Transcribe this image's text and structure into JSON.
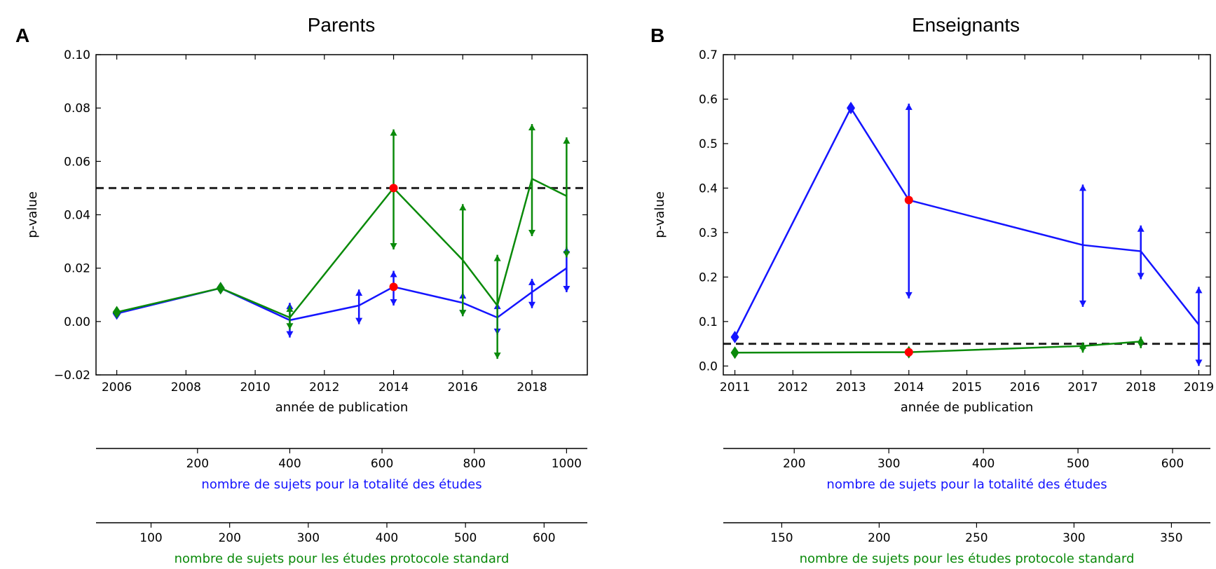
{
  "colors": {
    "all": "#1414ff",
    "standard": "#0a8a0a",
    "highlight": "#ff0000",
    "threshold": "#222222"
  },
  "chart_data": [
    {
      "type": "line",
      "panel_letter": "A",
      "title": "Parents",
      "xlabel": "année de publication",
      "ylabel": "p-value",
      "xlim": [
        2005.4,
        2019.6
      ],
      "ylim": [
        -0.02,
        0.1
      ],
      "xticks": [
        2006,
        2008,
        2010,
        2012,
        2014,
        2016,
        2018
      ],
      "yticks": [
        -0.02,
        0.0,
        0.02,
        0.04,
        0.06,
        0.08,
        0.1
      ],
      "ytick_labels": [
        "−0.02",
        "0.00",
        "0.02",
        "0.04",
        "0.06",
        "0.08",
        "0.10"
      ],
      "threshold": 0.05,
      "series": [
        {
          "key": "all",
          "color": "all",
          "points": [
            {
              "x": 2006,
              "y": 0.003,
              "lo": 0.003,
              "hi": 0.003
            },
            {
              "x": 2009,
              "y": 0.0125,
              "lo": 0.0125,
              "hi": 0.0125
            },
            {
              "x": 2011,
              "y": 0.0005,
              "lo": -0.006,
              "hi": 0.007
            },
            {
              "x": 2013,
              "y": 0.006,
              "lo": -0.001,
              "hi": 0.012
            },
            {
              "x": 2014,
              "y": 0.013,
              "lo": 0.006,
              "hi": 0.019,
              "highlight": true
            },
            {
              "x": 2016,
              "y": 0.007,
              "lo": 0.002,
              "hi": 0.011
            },
            {
              "x": 2017,
              "y": 0.0015,
              "lo": -0.005,
              "hi": 0.007
            },
            {
              "x": 2018,
              "y": 0.011,
              "lo": 0.005,
              "hi": 0.016
            },
            {
              "x": 2019,
              "y": 0.02,
              "lo": 0.011,
              "hi": 0.028
            }
          ]
        },
        {
          "key": "standard",
          "color": "standard",
          "points": [
            {
              "x": 2006,
              "y": 0.0035,
              "lo": 0.0035,
              "hi": 0.0035
            },
            {
              "x": 2009,
              "y": 0.0125,
              "lo": 0.0125,
              "hi": 0.0125
            },
            {
              "x": 2011,
              "y": 0.0015,
              "lo": -0.003,
              "hi": 0.006
            },
            {
              "x": 2014,
              "y": 0.05,
              "lo": 0.027,
              "hi": 0.072,
              "highlight": true
            },
            {
              "x": 2016,
              "y": 0.023,
              "lo": 0.002,
              "hi": 0.044
            },
            {
              "x": 2017,
              "y": 0.006,
              "lo": -0.014,
              "hi": 0.025
            },
            {
              "x": 2018,
              "y": 0.0535,
              "lo": 0.032,
              "hi": 0.074
            },
            {
              "x": 2019,
              "y": 0.047,
              "lo": 0.024,
              "hi": 0.069
            }
          ]
        }
      ],
      "secondary_axes": [
        {
          "label": "nombre de sujets pour la totalité des études",
          "color": "all",
          "xlim": [
            -20,
            1045
          ],
          "ticks": [
            200,
            400,
            600,
            800,
            1000
          ]
        },
        {
          "label": "nombre de sujets pour les études protocole standard",
          "color": "standard",
          "xlim": [
            30,
            655
          ],
          "ticks": [
            100,
            200,
            300,
            400,
            500,
            600
          ]
        }
      ]
    },
    {
      "type": "line",
      "panel_letter": "B",
      "title": "Enseignants",
      "xlabel": "année de publication",
      "ylabel": "p-value",
      "xlim": [
        2010.8,
        2019.2
      ],
      "ylim": [
        -0.02,
        0.7
      ],
      "xticks": [
        2011,
        2012,
        2013,
        2014,
        2015,
        2016,
        2017,
        2018,
        2019
      ],
      "yticks": [
        0.0,
        0.1,
        0.2,
        0.3,
        0.4,
        0.5,
        0.6,
        0.7
      ],
      "ytick_labels": [
        "0.0",
        "0.1",
        "0.2",
        "0.3",
        "0.4",
        "0.5",
        "0.6",
        "0.7"
      ],
      "threshold": 0.05,
      "series": [
        {
          "key": "all",
          "color": "all",
          "points": [
            {
              "x": 2011,
              "y": 0.065,
              "lo": 0.065,
              "hi": 0.065
            },
            {
              "x": 2013,
              "y": 0.58,
              "lo": 0.58,
              "hi": 0.58
            },
            {
              "x": 2014,
              "y": 0.373,
              "lo": 0.152,
              "hi": 0.59,
              "highlight": true
            },
            {
              "x": 2017,
              "y": 0.272,
              "lo": 0.133,
              "hi": 0.408
            },
            {
              "x": 2018,
              "y": 0.258,
              "lo": 0.195,
              "hi": 0.316
            },
            {
              "x": 2019,
              "y": 0.093,
              "lo": 0.0,
              "hi": 0.178
            }
          ]
        },
        {
          "key": "standard",
          "color": "standard",
          "points": [
            {
              "x": 2011,
              "y": 0.03,
              "lo": 0.03,
              "hi": 0.03
            },
            {
              "x": 2014,
              "y": 0.031,
              "lo": 0.031,
              "hi": 0.031,
              "highlight": true
            },
            {
              "x": 2017,
              "y": 0.045,
              "lo": 0.03,
              "hi": 0.053
            },
            {
              "x": 2018,
              "y": 0.055,
              "lo": 0.04,
              "hi": 0.066
            }
          ]
        }
      ],
      "secondary_axes": [
        {
          "label": "nombre de sujets pour la totalité des études",
          "color": "all",
          "xlim": [
            125,
            640
          ],
          "ticks": [
            200,
            300,
            400,
            500,
            600
          ]
        },
        {
          "label": "nombre de sujets pour les études protocole standard",
          "color": "standard",
          "xlim": [
            120,
            370
          ],
          "ticks": [
            150,
            200,
            250,
            300,
            350
          ]
        }
      ]
    }
  ]
}
